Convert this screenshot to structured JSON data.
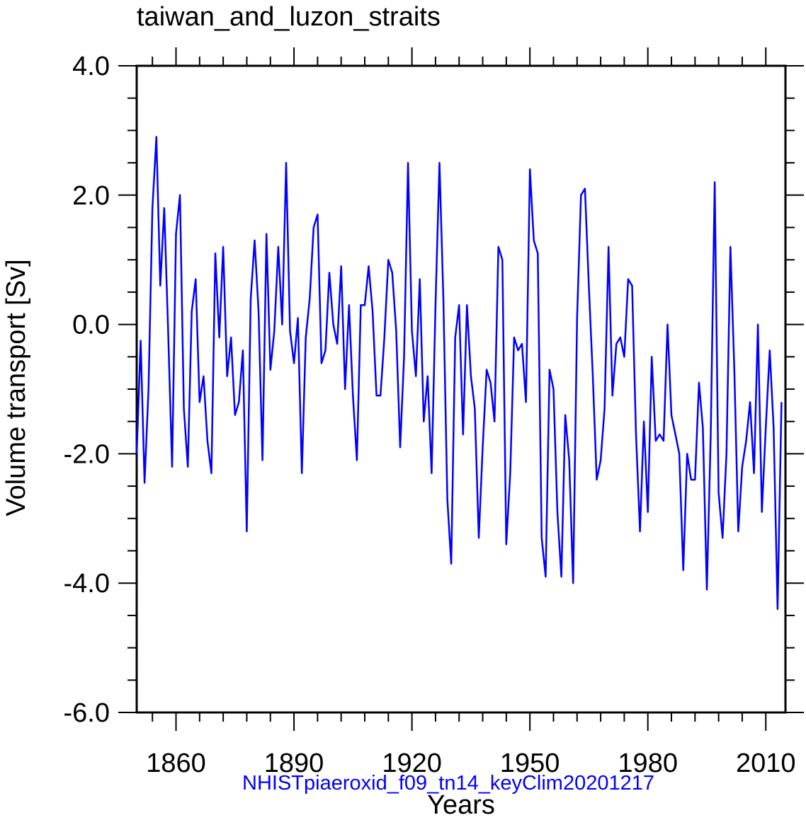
{
  "chart_data": {
    "type": "line",
    "title": "taiwan_and_luzon_straits",
    "subtitle": "NHISTpiaeroxid_f09_tn14_keyClim20201217",
    "xlabel": "Years",
    "ylabel": "Volume transport [Sv]",
    "xlim": [
      1850,
      2015
    ],
    "ylim": [
      -6,
      4
    ],
    "x_ticks": [
      1860,
      1890,
      1920,
      1950,
      1980,
      2010
    ],
    "x_tick_labels": [
      "1860",
      "1890",
      "1920",
      "1950",
      "1980",
      "2010"
    ],
    "y_ticks": [
      -6,
      -4,
      -2,
      0,
      2,
      4
    ],
    "y_tick_labels": [
      "-6.0",
      "-4.0",
      "-2.0",
      "0.0",
      "2.0",
      "4.0"
    ],
    "grid": false,
    "colors": {
      "line": "#0000ff",
      "subtitle": "#0000ff",
      "axis": "#000000"
    },
    "series": [
      {
        "name": "taiwan_and_luzon_straits",
        "x_start": 1850,
        "x_step": 1,
        "values": [
          -2.0,
          -0.25,
          -2.45,
          -1.0,
          1.8,
          2.9,
          0.6,
          1.8,
          -0.1,
          -2.2,
          1.4,
          2.0,
          -1.3,
          -2.2,
          0.2,
          0.7,
          -1.2,
          -0.8,
          -1.8,
          -2.3,
          1.1,
          -0.2,
          1.2,
          -0.8,
          -0.2,
          -1.4,
          -1.2,
          -0.4,
          -3.2,
          0.4,
          1.3,
          0.2,
          -2.1,
          1.4,
          -0.7,
          -0.1,
          1.2,
          0.0,
          2.5,
          -0.1,
          -0.6,
          0.1,
          -2.3,
          -0.2,
          0.4,
          1.5,
          1.7,
          -0.6,
          -0.4,
          0.8,
          0.0,
          -0.3,
          0.9,
          -1.0,
          0.3,
          -1.1,
          -2.1,
          0.3,
          0.3,
          0.9,
          0.2,
          -1.1,
          -1.1,
          -0.2,
          1.0,
          0.8,
          -0.1,
          -1.9,
          -0.5,
          2.5,
          -0.1,
          -0.8,
          0.7,
          -1.5,
          -0.8,
          -2.3,
          0.3,
          2.5,
          0.4,
          -2.7,
          -3.7,
          -0.2,
          0.3,
          -1.7,
          0.3,
          -0.8,
          -1.3,
          -3.3,
          -1.9,
          -0.7,
          -0.9,
          -1.5,
          1.2,
          1.0,
          -3.4,
          -2.3,
          -0.2,
          -0.4,
          -0.3,
          -1.2,
          2.4,
          1.3,
          1.1,
          -3.3,
          -3.9,
          -0.7,
          -1.0,
          -2.9,
          -3.9,
          -1.4,
          -2.1,
          -4.0,
          0.1,
          2.0,
          2.1,
          0.6,
          -0.8,
          -2.4,
          -2.1,
          -1.3,
          1.2,
          -1.1,
          -0.3,
          -0.2,
          -0.5,
          0.7,
          0.6,
          -1.7,
          -3.2,
          -1.5,
          -2.9,
          -0.5,
          -1.8,
          -1.7,
          -1.8,
          0.0,
          -1.4,
          -1.7,
          -2.0,
          -3.8,
          -2.0,
          -2.4,
          -2.4,
          -0.9,
          -1.6,
          -4.1,
          -1.7,
          2.2,
          -2.6,
          -3.3,
          -2.0,
          1.2,
          -0.7,
          -3.2,
          -2.2,
          -1.8,
          -1.2,
          -2.3,
          0.0,
          -2.9,
          -1.6,
          -0.4,
          -1.6,
          -4.4,
          -1.2
        ]
      }
    ]
  }
}
